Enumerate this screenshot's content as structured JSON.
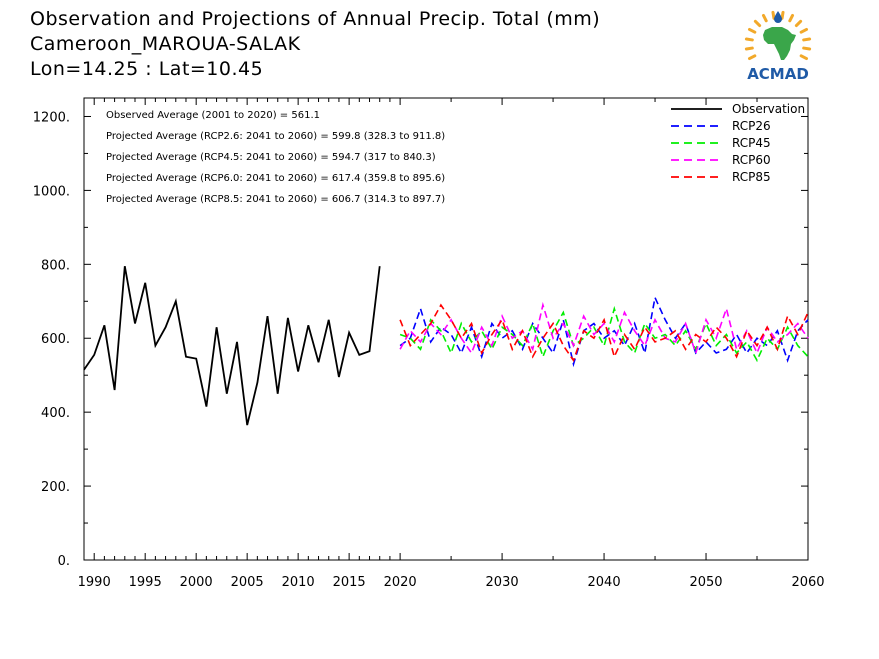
{
  "header": {
    "title_line1": "Observation and Projections of Annual Precip. Total (mm)",
    "title_line2": "Cameroon_MAROUA-SALAK",
    "title_line3": "Lon=14.25 : Lat=10.45"
  },
  "logo": {
    "text": "ACMAD",
    "icon": "africa-map-sun-logo",
    "brand_color": "#1f5aa6",
    "map_color": "#3aa64a",
    "sun_color": "#f2a92a"
  },
  "chart_data": {
    "type": "line",
    "xlim": [
      1989,
      2060
    ],
    "ylim": [
      0,
      1250
    ],
    "x_ticks": [
      1990,
      1995,
      2000,
      2005,
      2010,
      2015,
      2020,
      2030,
      2040,
      2050,
      2060
    ],
    "x_tick_labels": [
      "1990",
      "1995",
      "2000",
      "2005",
      "2010",
      "2015",
      "2020",
      "2030",
      "2040",
      "2050",
      "2060"
    ],
    "y_ticks": [
      0,
      200,
      400,
      600,
      800,
      1000,
      1200
    ],
    "y_tick_labels": [
      "0.",
      "200.",
      "400.",
      "600.",
      "800.",
      "1000.",
      "1200."
    ],
    "annotations": [
      "Observed Average (2001 to 2020) = 561.1",
      "Projected Average (RCP2.6: 2041 to 2060) = 599.8 (328.3 to 911.8)",
      "Projected Average (RCP4.5: 2041 to 2060) = 594.7 (317 to 840.3)",
      "Projected Average (RCP6.0: 2041 to 2060) = 617.4 (359.8 to 895.6)",
      "Projected Average (RCP8.5: 2041 to 2060) = 606.7 (314.3 to 897.7)"
    ],
    "legend_position": "top-right",
    "series": [
      {
        "name": "Observation",
        "color": "#000000",
        "dashed": false,
        "x": [
          1989,
          1990,
          1991,
          1992,
          1993,
          1994,
          1995,
          1996,
          1997,
          1998,
          1999,
          2000,
          2001,
          2002,
          2003,
          2004,
          2005,
          2006,
          2007,
          2008,
          2009,
          2010,
          2011,
          2012,
          2013,
          2014,
          2015,
          2016,
          2017,
          2018,
          2019,
          2020
        ],
        "values": [
          515,
          555,
          635,
          460,
          795,
          640,
          750,
          580,
          630,
          700,
          550,
          545,
          415,
          630,
          450,
          590,
          365,
          480,
          660,
          450,
          655,
          510,
          635,
          535,
          650,
          495,
          615,
          555,
          565,
          795,
          null,
          null
        ]
      },
      {
        "name": "RCP26",
        "color": "#0000ff",
        "dashed": true,
        "x": [
          2020,
          2021,
          2022,
          2023,
          2024,
          2025,
          2026,
          2027,
          2028,
          2029,
          2030,
          2031,
          2032,
          2033,
          2034,
          2035,
          2036,
          2037,
          2038,
          2039,
          2040,
          2041,
          2042,
          2043,
          2044,
          2045,
          2046,
          2047,
          2048,
          2049,
          2050,
          2051,
          2052,
          2053,
          2054,
          2055,
          2056,
          2057,
          2058,
          2059,
          2060
        ],
        "values": [
          580,
          600,
          680,
          590,
          630,
          610,
          560,
          630,
          550,
          640,
          600,
          620,
          570,
          640,
          600,
          560,
          650,
          530,
          620,
          640,
          600,
          620,
          580,
          640,
          560,
          710,
          650,
          600,
          640,
          560,
          590,
          560,
          570,
          610,
          560,
          600,
          580,
          620,
          540,
          620,
          650
        ]
      },
      {
        "name": "RCP45",
        "color": "#00ee00",
        "dashed": true,
        "x": [
          2020,
          2021,
          2022,
          2023,
          2024,
          2025,
          2026,
          2027,
          2028,
          2029,
          2030,
          2031,
          2032,
          2033,
          2034,
          2035,
          2036,
          2037,
          2038,
          2039,
          2040,
          2041,
          2042,
          2043,
          2044,
          2045,
          2046,
          2047,
          2048,
          2049,
          2050,
          2051,
          2052,
          2053,
          2054,
          2055,
          2056,
          2057,
          2058,
          2059,
          2060
        ],
        "values": [
          610,
          600,
          570,
          650,
          620,
          560,
          640,
          590,
          620,
          570,
          630,
          610,
          580,
          640,
          550,
          620,
          670,
          580,
          600,
          630,
          580,
          680,
          590,
          560,
          640,
          600,
          610,
          580,
          620,
          570,
          640,
          580,
          610,
          560,
          590,
          540,
          600,
          570,
          630,
          580,
          550
        ]
      },
      {
        "name": "RCP60",
        "color": "#ff00ff",
        "dashed": true,
        "x": [
          2020,
          2021,
          2022,
          2023,
          2024,
          2025,
          2026,
          2027,
          2028,
          2029,
          2030,
          2031,
          2032,
          2033,
          2034,
          2035,
          2036,
          2037,
          2038,
          2039,
          2040,
          2041,
          2042,
          2043,
          2044,
          2045,
          2046,
          2047,
          2048,
          2049,
          2050,
          2051,
          2052,
          2053,
          2054,
          2055,
          2056,
          2057,
          2058,
          2059,
          2060
        ],
        "values": [
          570,
          620,
          590,
          640,
          610,
          650,
          600,
          560,
          630,
          580,
          660,
          600,
          620,
          570,
          690,
          600,
          640,
          580,
          660,
          610,
          640,
          590,
          670,
          620,
          580,
          650,
          600,
          590,
          640,
          560,
          650,
          600,
          680,
          570,
          620,
          560,
          630,
          590,
          610,
          640,
          600
        ]
      },
      {
        "name": "RCP85",
        "color": "#ff0000",
        "dashed": true,
        "x": [
          2020,
          2021,
          2022,
          2023,
          2024,
          2025,
          2026,
          2027,
          2028,
          2029,
          2030,
          2031,
          2032,
          2033,
          2034,
          2035,
          2036,
          2037,
          2038,
          2039,
          2040,
          2041,
          2042,
          2043,
          2044,
          2045,
          2046,
          2047,
          2048,
          2049,
          2050,
          2051,
          2052,
          2053,
          2054,
          2055,
          2056,
          2057,
          2058,
          2059,
          2060
        ],
        "values": [
          650,
          580,
          610,
          640,
          690,
          650,
          600,
          640,
          560,
          610,
          650,
          570,
          620,
          550,
          600,
          640,
          580,
          540,
          620,
          600,
          650,
          550,
          610,
          570,
          630,
          590,
          600,
          620,
          570,
          610,
          590,
          630,
          600,
          550,
          620,
          580,
          630,
          570,
          660,
          610,
          670
        ]
      }
    ]
  }
}
